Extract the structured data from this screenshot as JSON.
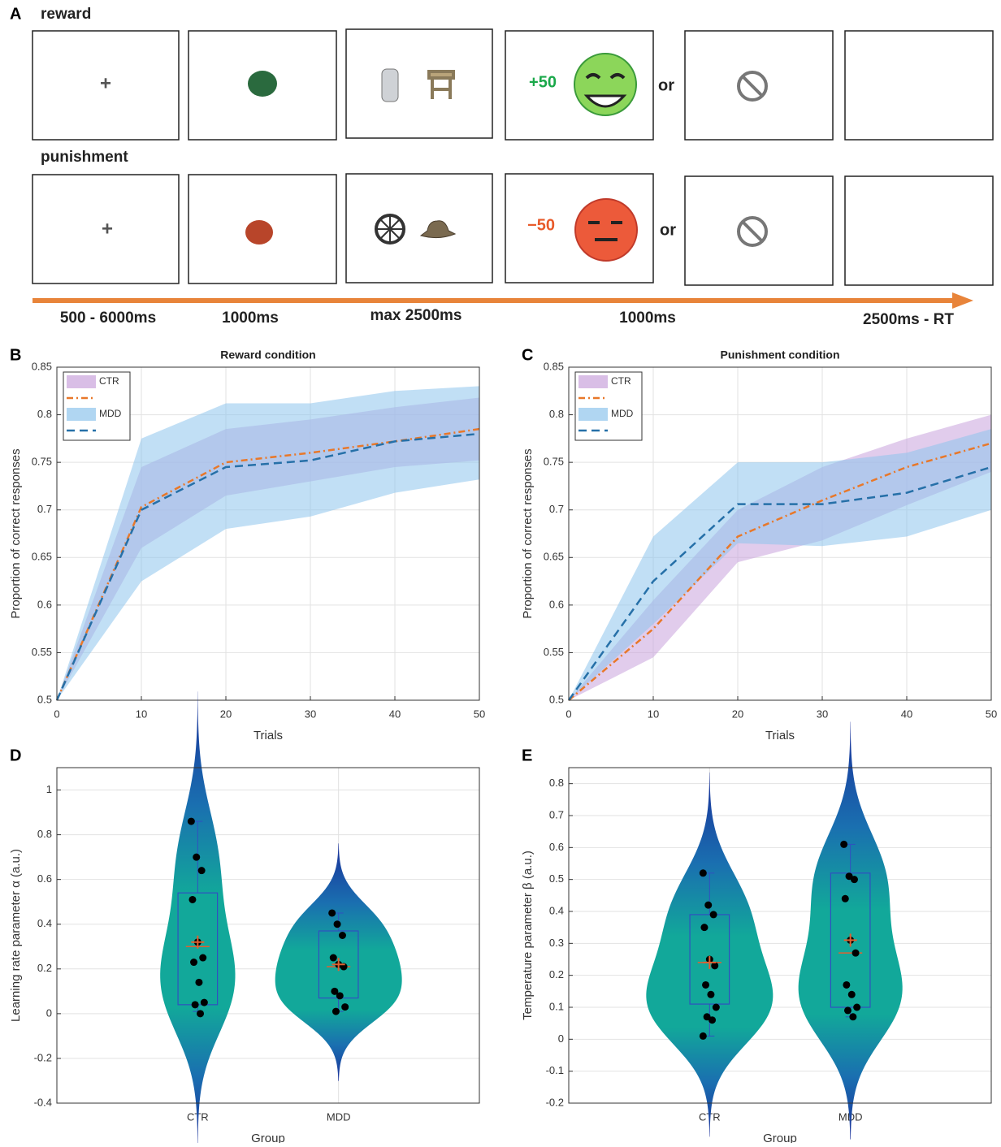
{
  "panel_a": {
    "label": "A",
    "rows": [
      {
        "label": "reward",
        "fixation": "+",
        "feedback": "+50",
        "or": "or"
      },
      {
        "label": "punishment",
        "fixation": "+",
        "feedback": "−50",
        "or": "or"
      }
    ],
    "timeline": [
      "500 - 6000ms",
      "1000ms",
      "max 2500ms",
      "1000ms",
      "2500ms - RT"
    ]
  },
  "chart_data": [
    {
      "type": "line",
      "panel_label": "B",
      "title": "Reward condition",
      "x_label": "Trials",
      "y_label": "Proportion of correct responses",
      "x": [
        0,
        10,
        20,
        30,
        40,
        50
      ],
      "xlim": [
        0,
        50
      ],
      "xticks": [
        0,
        10,
        20,
        30,
        40,
        50
      ],
      "ylim": [
        0.5,
        0.85
      ],
      "yticks": [
        0.5,
        0.55,
        0.6,
        0.65,
        0.7,
        0.75,
        0.8,
        0.85
      ],
      "grid": true,
      "legend": "upper left",
      "series": [
        {
          "name": "CTR",
          "color": "#e8782a",
          "band_color": "#c9a3dc",
          "line_style": "dash-dot",
          "values": [
            0.5,
            0.703,
            0.75,
            0.76,
            0.772,
            0.785
          ],
          "lower": [
            0.5,
            0.66,
            0.715,
            0.73,
            0.745,
            0.752
          ],
          "upper": [
            0.5,
            0.745,
            0.785,
            0.795,
            0.808,
            0.818
          ]
        },
        {
          "name": "MDD",
          "color": "#2670a8",
          "band_color": "#8ec4ec",
          "line_style": "dashed",
          "values": [
            0.5,
            0.7,
            0.745,
            0.752,
            0.772,
            0.78
          ],
          "lower": [
            0.5,
            0.625,
            0.68,
            0.693,
            0.718,
            0.732
          ],
          "upper": [
            0.5,
            0.775,
            0.812,
            0.812,
            0.825,
            0.83
          ]
        }
      ]
    },
    {
      "type": "line",
      "panel_label": "C",
      "title": "Punishment condition",
      "x_label": "Trials",
      "y_label": "Proportion of correct responses",
      "x": [
        0,
        10,
        20,
        30,
        40,
        50
      ],
      "xlim": [
        0,
        50
      ],
      "xticks": [
        0,
        10,
        20,
        30,
        40,
        50
      ],
      "ylim": [
        0.5,
        0.85
      ],
      "yticks": [
        0.5,
        0.55,
        0.6,
        0.65,
        0.7,
        0.75,
        0.8,
        0.85
      ],
      "grid": true,
      "legend": "upper left",
      "series": [
        {
          "name": "CTR",
          "color": "#e8782a",
          "band_color": "#c9a3dc",
          "line_style": "dash-dot",
          "values": [
            0.5,
            0.575,
            0.672,
            0.71,
            0.745,
            0.77
          ],
          "lower": [
            0.5,
            0.545,
            0.645,
            0.668,
            0.705,
            0.74
          ],
          "upper": [
            0.5,
            0.605,
            0.7,
            0.745,
            0.775,
            0.8
          ]
        },
        {
          "name": "MDD",
          "color": "#2670a8",
          "band_color": "#8ec4ec",
          "line_style": "dashed",
          "values": [
            0.5,
            0.625,
            0.706,
            0.706,
            0.718,
            0.745
          ],
          "lower": [
            0.5,
            0.58,
            0.665,
            0.662,
            0.672,
            0.7
          ],
          "upper": [
            0.5,
            0.672,
            0.75,
            0.75,
            0.76,
            0.785
          ]
        }
      ]
    },
    {
      "type": "violin",
      "panel_label": "D",
      "x_label": "Group",
      "y_label": "Learning rate parameter α (a.u.)",
      "categories": [
        "CTR",
        "MDD"
      ],
      "ylim": [
        -0.4,
        1.1
      ],
      "yticks": [
        -0.4,
        -0.2,
        0,
        0.2,
        0.4,
        0.6,
        0.8,
        1
      ],
      "grid": true,
      "box_color": "#3050c0",
      "mean_color": "#e06030",
      "point_color": "#000000",
      "groups": [
        {
          "points": [
            0.86,
            0.7,
            0.64,
            0.51,
            0.32,
            0.25,
            0.23,
            0.14,
            0.05,
            0.04,
            0
          ],
          "q1": 0.04,
          "median": 0.3,
          "q3": 0.54,
          "whisker_low": 0.01,
          "whisker_high": 0.86,
          "mean": 0.32
        },
        {
          "points": [
            0.45,
            0.4,
            0.35,
            0.25,
            0.22,
            0.21,
            0.1,
            0.08,
            0.03,
            0.01
          ],
          "q1": 0.07,
          "median": 0.21,
          "q3": 0.37,
          "whisker_low": 0.01,
          "whisker_high": 0.45,
          "mean": 0.22
        }
      ]
    },
    {
      "type": "violin",
      "panel_label": "E",
      "x_label": "Group",
      "y_label": "Temperature parameter β (a.u.)",
      "categories": [
        "CTR",
        "MDD"
      ],
      "ylim": [
        -0.2,
        0.85
      ],
      "yticks": [
        -0.2,
        -0.1,
        0,
        0.1,
        0.2,
        0.3,
        0.4,
        0.5,
        0.6,
        0.7,
        0.8
      ],
      "grid": true,
      "box_color": "#3050c0",
      "mean_color": "#e06030",
      "point_color": "#000000",
      "groups": [
        {
          "points": [
            0.52,
            0.42,
            0.39,
            0.35,
            0.25,
            0.23,
            0.17,
            0.14,
            0.1,
            0.07,
            0.06,
            0.01
          ],
          "q1": 0.11,
          "median": 0.24,
          "q3": 0.39,
          "whisker_low": 0.01,
          "whisker_high": 0.52,
          "mean": 0.24
        },
        {
          "points": [
            0.61,
            0.51,
            0.5,
            0.44,
            0.31,
            0.27,
            0.17,
            0.14,
            0.1,
            0.09,
            0.07
          ],
          "q1": 0.1,
          "median": 0.27,
          "q3": 0.52,
          "whisker_low": 0.07,
          "whisker_high": 0.61,
          "mean": 0.31
        }
      ]
    }
  ]
}
